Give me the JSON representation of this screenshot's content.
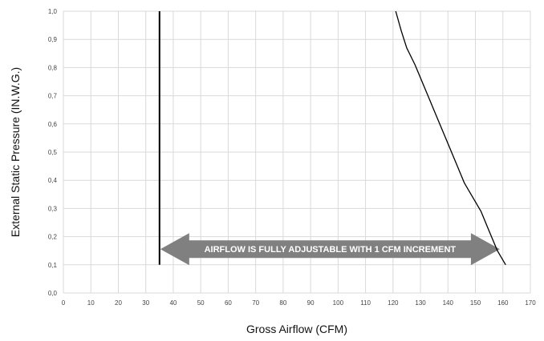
{
  "chart_data": {
    "type": "line",
    "xlabel": "Gross Airflow (CFM)",
    "ylabel": "External Static Pressure (IN.W.G.)",
    "xlim": [
      0,
      170
    ],
    "ylim": [
      0,
      1.0
    ],
    "x_ticks": [
      "0",
      "10",
      "20",
      "30",
      "40",
      "50",
      "60",
      "70",
      "80",
      "90",
      "100",
      "110",
      "120",
      "130",
      "140",
      "150",
      "160",
      "170"
    ],
    "y_ticks": [
      "0,0",
      "0,1",
      "0,2",
      "0,3",
      "0,4",
      "0,5",
      "0,6",
      "0,7",
      "0,8",
      "0,9",
      "1,0"
    ],
    "grid": true,
    "series": [
      {
        "points": [
          [
            35,
            0.1
          ],
          [
            35,
            1.0
          ]
        ],
        "color": "#000000"
      },
      {
        "points": [
          [
            121,
            1.0
          ],
          [
            123,
            0.93
          ],
          [
            125,
            0.87
          ],
          [
            128,
            0.81
          ],
          [
            131,
            0.74
          ],
          [
            134,
            0.67
          ],
          [
            137,
            0.6
          ],
          [
            140,
            0.53
          ],
          [
            143,
            0.46
          ],
          [
            146,
            0.39
          ],
          [
            149,
            0.34
          ],
          [
            152,
            0.29
          ],
          [
            155,
            0.22
          ],
          [
            158,
            0.15
          ],
          [
            161,
            0.1
          ]
        ],
        "color": "#000000"
      }
    ],
    "annotations": [
      {
        "text": "AIRFLOW IS FULLY ADJUSTABLE WITH 1 CFM INCREMENT",
        "from_x": 35,
        "to_x": 158,
        "y": 0.15,
        "color": "#808080"
      }
    ]
  }
}
